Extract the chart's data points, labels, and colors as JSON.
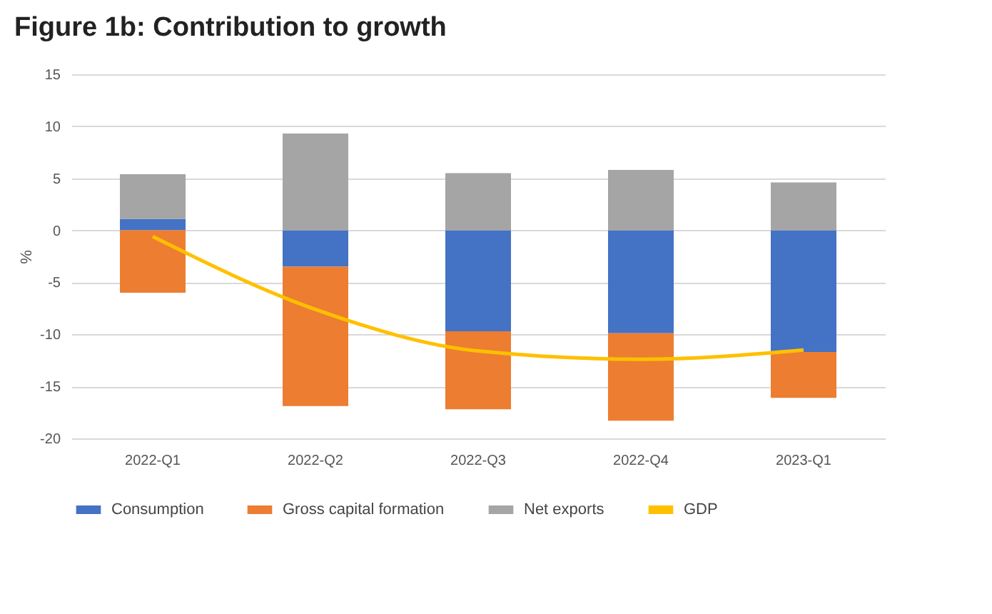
{
  "chart_data": {
    "type": "bar",
    "title": "Figure 1b: Contribution to growth",
    "ylabel": "%",
    "stacked": true,
    "grid": "y",
    "legend": "bottom",
    "categories": [
      "2022-Q1",
      "2022-Q2",
      "2022-Q3",
      "2022-Q4",
      "2023-Q1"
    ],
    "ylim": [
      -20,
      15
    ],
    "yticks": [
      -20,
      -15,
      -10,
      -5,
      0,
      5,
      10,
      15
    ],
    "series": [
      {
        "name": "Consumption",
        "color": "#4472c4",
        "values": [
          1.1,
          -3.5,
          -9.7,
          -9.9,
          -11.7
        ]
      },
      {
        "name": "Gross capital formation",
        "color": "#ed7d31",
        "values": [
          -6.0,
          -13.4,
          -7.5,
          -8.4,
          -4.4
        ]
      },
      {
        "name": "Net exports",
        "color": "#a5a5a5",
        "values": [
          4.3,
          9.3,
          5.5,
          5.8,
          4.6
        ]
      },
      {
        "name": "GDP",
        "type": "line",
        "color": "#ffc000",
        "values": [
          -0.6,
          -7.6,
          -11.6,
          -12.4,
          -11.5
        ]
      }
    ]
  }
}
